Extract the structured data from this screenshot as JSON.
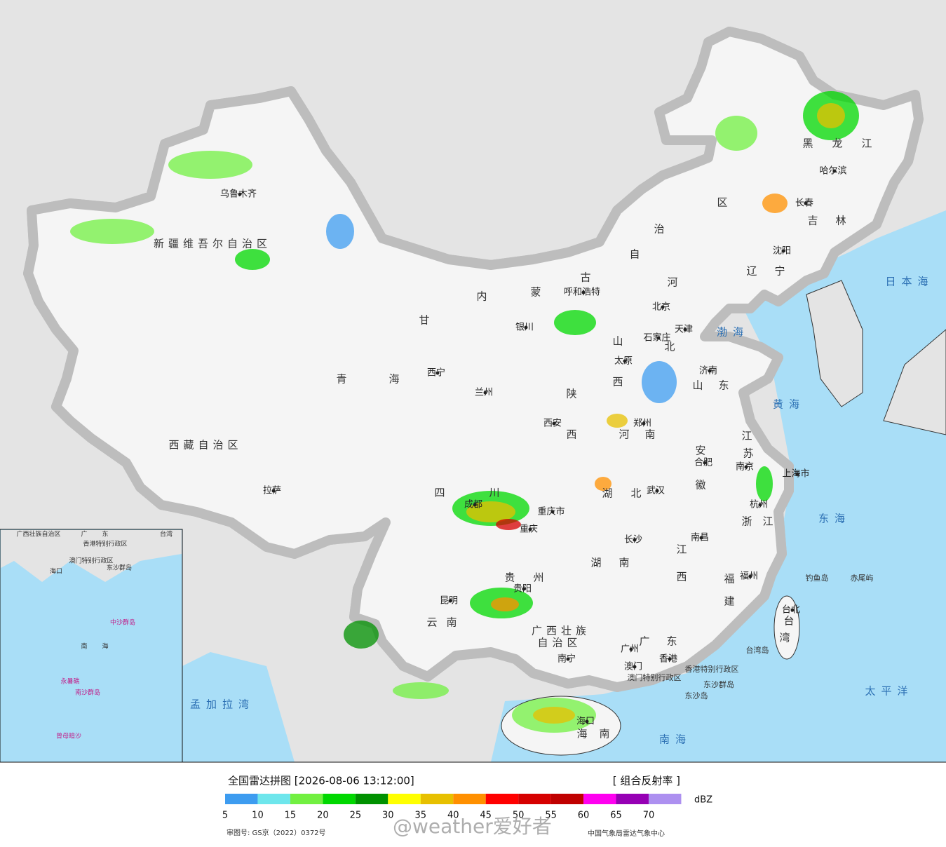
{
  "map": {
    "places": [
      "乌鲁木齐",
      "新疆维吾尔自治区",
      "西藏自治区",
      "拉萨",
      "青",
      "海",
      "西宁",
      "甘",
      "兰州",
      "内",
      "蒙",
      "古",
      "自",
      "治",
      "区",
      "呼和浩特",
      "银川",
      "北京",
      "天津",
      "河",
      "北",
      "石家庄",
      "山",
      "西",
      "太原",
      "山",
      "东",
      "济南",
      "黑",
      "龙",
      "江",
      "哈尔滨",
      "长春",
      "吉",
      "林",
      "沈阳",
      "辽",
      "宁",
      "陕",
      "西",
      "西安",
      "郑州",
      "河",
      "南",
      "安",
      "徽",
      "合肥",
      "江",
      "苏",
      "南京",
      "上海市",
      "杭州",
      "浙",
      "江",
      "四",
      "川",
      "成都",
      "重庆市",
      "重庆",
      "湖",
      "北",
      "武汉",
      "长沙",
      "湖",
      "南",
      "南昌",
      "江",
      "西",
      "福",
      "建",
      "福州",
      "贵",
      "州",
      "贵阳",
      "云",
      "南",
      "昆明",
      "广西壮族",
      "自治区",
      "南宁",
      "广",
      "东",
      "广州",
      "澳门",
      "香港",
      "香港特别行政区",
      "澳门特别行政区",
      "东沙群岛",
      "东沙岛",
      "海口",
      "海",
      "南",
      "台北",
      "台",
      "湾",
      "台湾岛",
      "钓鱼岛",
      "赤尾屿",
      "日本海",
      "渤海",
      "黄海",
      "东海",
      "南海",
      "太平洋",
      "孟加拉湾"
    ],
    "inset_places": [
      "广西壮族自治区",
      "广",
      "东",
      "台湾",
      "香港特别行政区",
      "澳门特别行政区",
      "东沙群岛",
      "海口",
      "中沙群岛",
      "南",
      "海",
      "永暑礁",
      "南沙群岛",
      "曾母暗沙"
    ]
  },
  "legend": {
    "title": "全国雷达拼图 [2026-08-06 13:12:00]",
    "product": "[ 组合反射率 ]",
    "unit": "dBZ",
    "values": [
      5,
      10,
      15,
      20,
      25,
      30,
      35,
      40,
      45,
      50,
      55,
      60,
      65,
      70
    ],
    "colors": [
      "#3d9cf0",
      "#6ee6ec",
      "#72f041",
      "#00d800",
      "#009100",
      "#ffff00",
      "#e7c000",
      "#ff9000",
      "#ff0000",
      "#d60000",
      "#c00000",
      "#ff00f0",
      "#9600b4",
      "#ad90f0"
    ]
  },
  "footer": {
    "approval": "审图号: GS京（2022）0372号",
    "watermark": "@weather爱好者",
    "source": "中国气象局雷达气象中心"
  }
}
